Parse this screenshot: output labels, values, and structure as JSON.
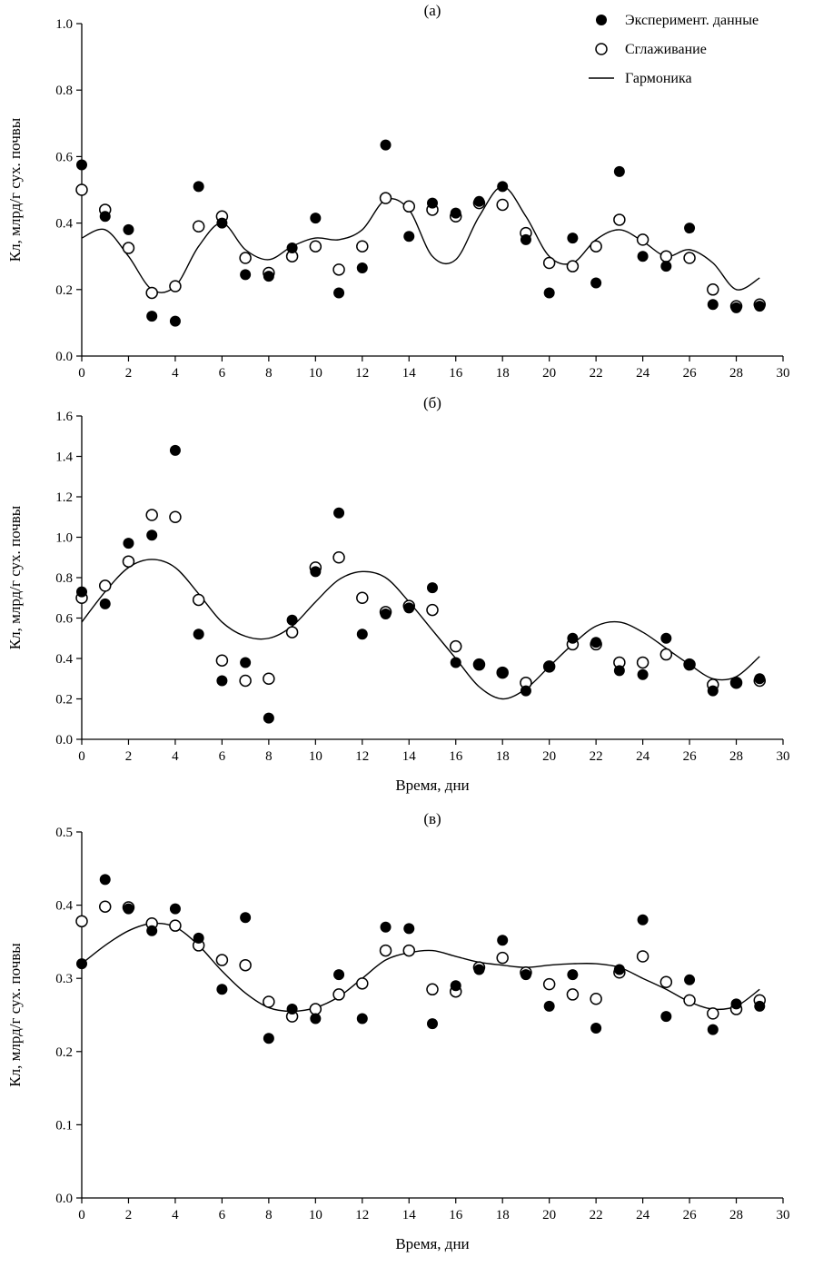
{
  "figure": {
    "panels": [
      "(а)",
      "(б)",
      "(в)"
    ],
    "colors": {
      "ink": "#000000",
      "background": "#ffffff"
    }
  },
  "chart_data": [
    {
      "type": "scatter",
      "title": "(а)",
      "xlabel": "",
      "ylabel": "Кл, млрд/г сух. почвы",
      "xlim": [
        0,
        30
      ],
      "ylim": [
        0,
        1.0
      ],
      "xtick_step": 2,
      "ytick_step": 0.2,
      "grid": false,
      "legend": true,
      "legend_position": "top-right",
      "legend_entries": [
        "Эксперимент. данные",
        "Сглаживание",
        "Гармоника"
      ],
      "x": [
        0,
        1,
        2,
        3,
        4,
        5,
        6,
        7,
        8,
        9,
        10,
        11,
        12,
        13,
        14,
        15,
        16,
        17,
        18,
        19,
        20,
        21,
        22,
        23,
        24,
        25,
        26,
        27,
        28,
        29
      ],
      "series": [
        {
          "name": "Эксперимент. данные",
          "marker": "filled-circle",
          "values": [
            0.575,
            0.42,
            0.38,
            0.12,
            0.105,
            0.51,
            0.4,
            0.245,
            0.24,
            0.325,
            0.415,
            0.19,
            0.265,
            0.635,
            0.36,
            0.46,
            0.43,
            0.465,
            0.51,
            0.35,
            0.19,
            0.355,
            0.22,
            0.555,
            0.3,
            0.27,
            0.385,
            0.155,
            0.145,
            0.15
          ]
        },
        {
          "name": "Сглаживание",
          "marker": "open-circle",
          "values": [
            0.5,
            0.44,
            0.325,
            0.19,
            0.21,
            0.39,
            0.42,
            0.295,
            0.25,
            0.3,
            0.33,
            0.26,
            0.33,
            0.475,
            0.45,
            0.44,
            0.42,
            0.46,
            0.455,
            0.37,
            0.28,
            0.27,
            0.33,
            0.41,
            0.35,
            0.3,
            0.295,
            0.2,
            0.15,
            0.155
          ]
        },
        {
          "name": "Гармоника",
          "marker": "line",
          "values": [
            0.355,
            0.38,
            0.3,
            0.2,
            0.21,
            0.33,
            0.4,
            0.32,
            0.29,
            0.33,
            0.355,
            0.35,
            0.38,
            0.47,
            0.44,
            0.3,
            0.29,
            0.42,
            0.51,
            0.42,
            0.3,
            0.28,
            0.35,
            0.38,
            0.345,
            0.3,
            0.32,
            0.28,
            0.2,
            0.235
          ]
        }
      ]
    },
    {
      "type": "scatter",
      "title": "(б)",
      "xlabel": "Время, дни",
      "ylabel": "Кл, млрд/г сух. почвы",
      "xlim": [
        0,
        30
      ],
      "ylim": [
        0,
        1.6
      ],
      "xtick_step": 2,
      "ytick_step": 0.2,
      "grid": false,
      "legend": false,
      "x": [
        0,
        1,
        2,
        3,
        4,
        5,
        6,
        7,
        8,
        9,
        10,
        11,
        12,
        13,
        14,
        15,
        16,
        17,
        18,
        19,
        20,
        21,
        22,
        23,
        24,
        25,
        26,
        27,
        28,
        29
      ],
      "series": [
        {
          "name": "Эксперимент. данные",
          "marker": "filled-circle",
          "values": [
            0.73,
            0.67,
            0.97,
            1.01,
            1.43,
            0.52,
            0.29,
            0.38,
            0.105,
            0.59,
            0.83,
            1.12,
            0.52,
            0.62,
            0.65,
            0.75,
            0.38,
            0.37,
            0.33,
            0.24,
            0.36,
            0.5,
            0.48,
            0.34,
            0.32,
            0.5,
            0.37,
            0.24,
            0.28,
            0.3
          ]
        },
        {
          "name": "Сглаживание",
          "marker": "open-circle",
          "values": [
            0.7,
            0.76,
            0.88,
            1.11,
            1.1,
            0.69,
            0.39,
            0.29,
            0.3,
            0.53,
            0.85,
            0.9,
            0.7,
            0.63,
            0.66,
            0.64,
            0.46,
            0.37,
            0.33,
            0.28,
            0.36,
            0.47,
            0.47,
            0.38,
            0.38,
            0.42,
            0.37,
            0.27,
            0.28,
            0.29
          ]
        },
        {
          "name": "Гармоника",
          "marker": "line",
          "values": [
            0.58,
            0.73,
            0.85,
            0.89,
            0.85,
            0.72,
            0.58,
            0.51,
            0.5,
            0.56,
            0.68,
            0.79,
            0.83,
            0.8,
            0.68,
            0.54,
            0.4,
            0.26,
            0.2,
            0.25,
            0.36,
            0.47,
            0.56,
            0.58,
            0.53,
            0.45,
            0.37,
            0.3,
            0.31,
            0.41
          ]
        }
      ]
    },
    {
      "type": "scatter",
      "title": "(в)",
      "xlabel": "Время, дни",
      "ylabel": "Кл, млрд/г сух. почвы",
      "xlim": [
        0,
        30
      ],
      "ylim": [
        0,
        0.5
      ],
      "xtick_step": 2,
      "ytick_step": 0.1,
      "grid": false,
      "legend": false,
      "x": [
        0,
        1,
        2,
        3,
        4,
        5,
        6,
        7,
        8,
        9,
        10,
        11,
        12,
        13,
        14,
        15,
        16,
        17,
        18,
        19,
        20,
        21,
        22,
        23,
        24,
        25,
        26,
        27,
        28,
        29
      ],
      "series": [
        {
          "name": "Эксперимент. данные",
          "marker": "filled-circle",
          "values": [
            0.32,
            0.435,
            0.395,
            0.365,
            0.395,
            0.355,
            0.285,
            0.383,
            0.218,
            0.258,
            0.245,
            0.305,
            0.245,
            0.37,
            0.368,
            0.238,
            0.29,
            0.312,
            0.352,
            0.305,
            0.262,
            0.305,
            0.232,
            0.312,
            0.38,
            0.248,
            0.298,
            0.23,
            0.265,
            0.262
          ]
        },
        {
          "name": "Сглаживание",
          "marker": "open-circle",
          "values": [
            0.378,
            0.398,
            0.397,
            0.375,
            0.372,
            0.345,
            0.325,
            0.318,
            0.268,
            0.248,
            0.258,
            0.278,
            0.293,
            0.338,
            0.338,
            0.285,
            0.282,
            0.315,
            0.328,
            0.308,
            0.292,
            0.278,
            0.272,
            0.308,
            0.33,
            0.295,
            0.27,
            0.252,
            0.258,
            0.27
          ]
        },
        {
          "name": "Гармоника",
          "marker": "line",
          "values": [
            0.32,
            0.345,
            0.365,
            0.375,
            0.37,
            0.345,
            0.31,
            0.28,
            0.26,
            0.255,
            0.26,
            0.275,
            0.3,
            0.325,
            0.335,
            0.338,
            0.33,
            0.322,
            0.318,
            0.315,
            0.318,
            0.32,
            0.32,
            0.315,
            0.3,
            0.285,
            0.268,
            0.258,
            0.262,
            0.285
          ]
        }
      ]
    }
  ]
}
